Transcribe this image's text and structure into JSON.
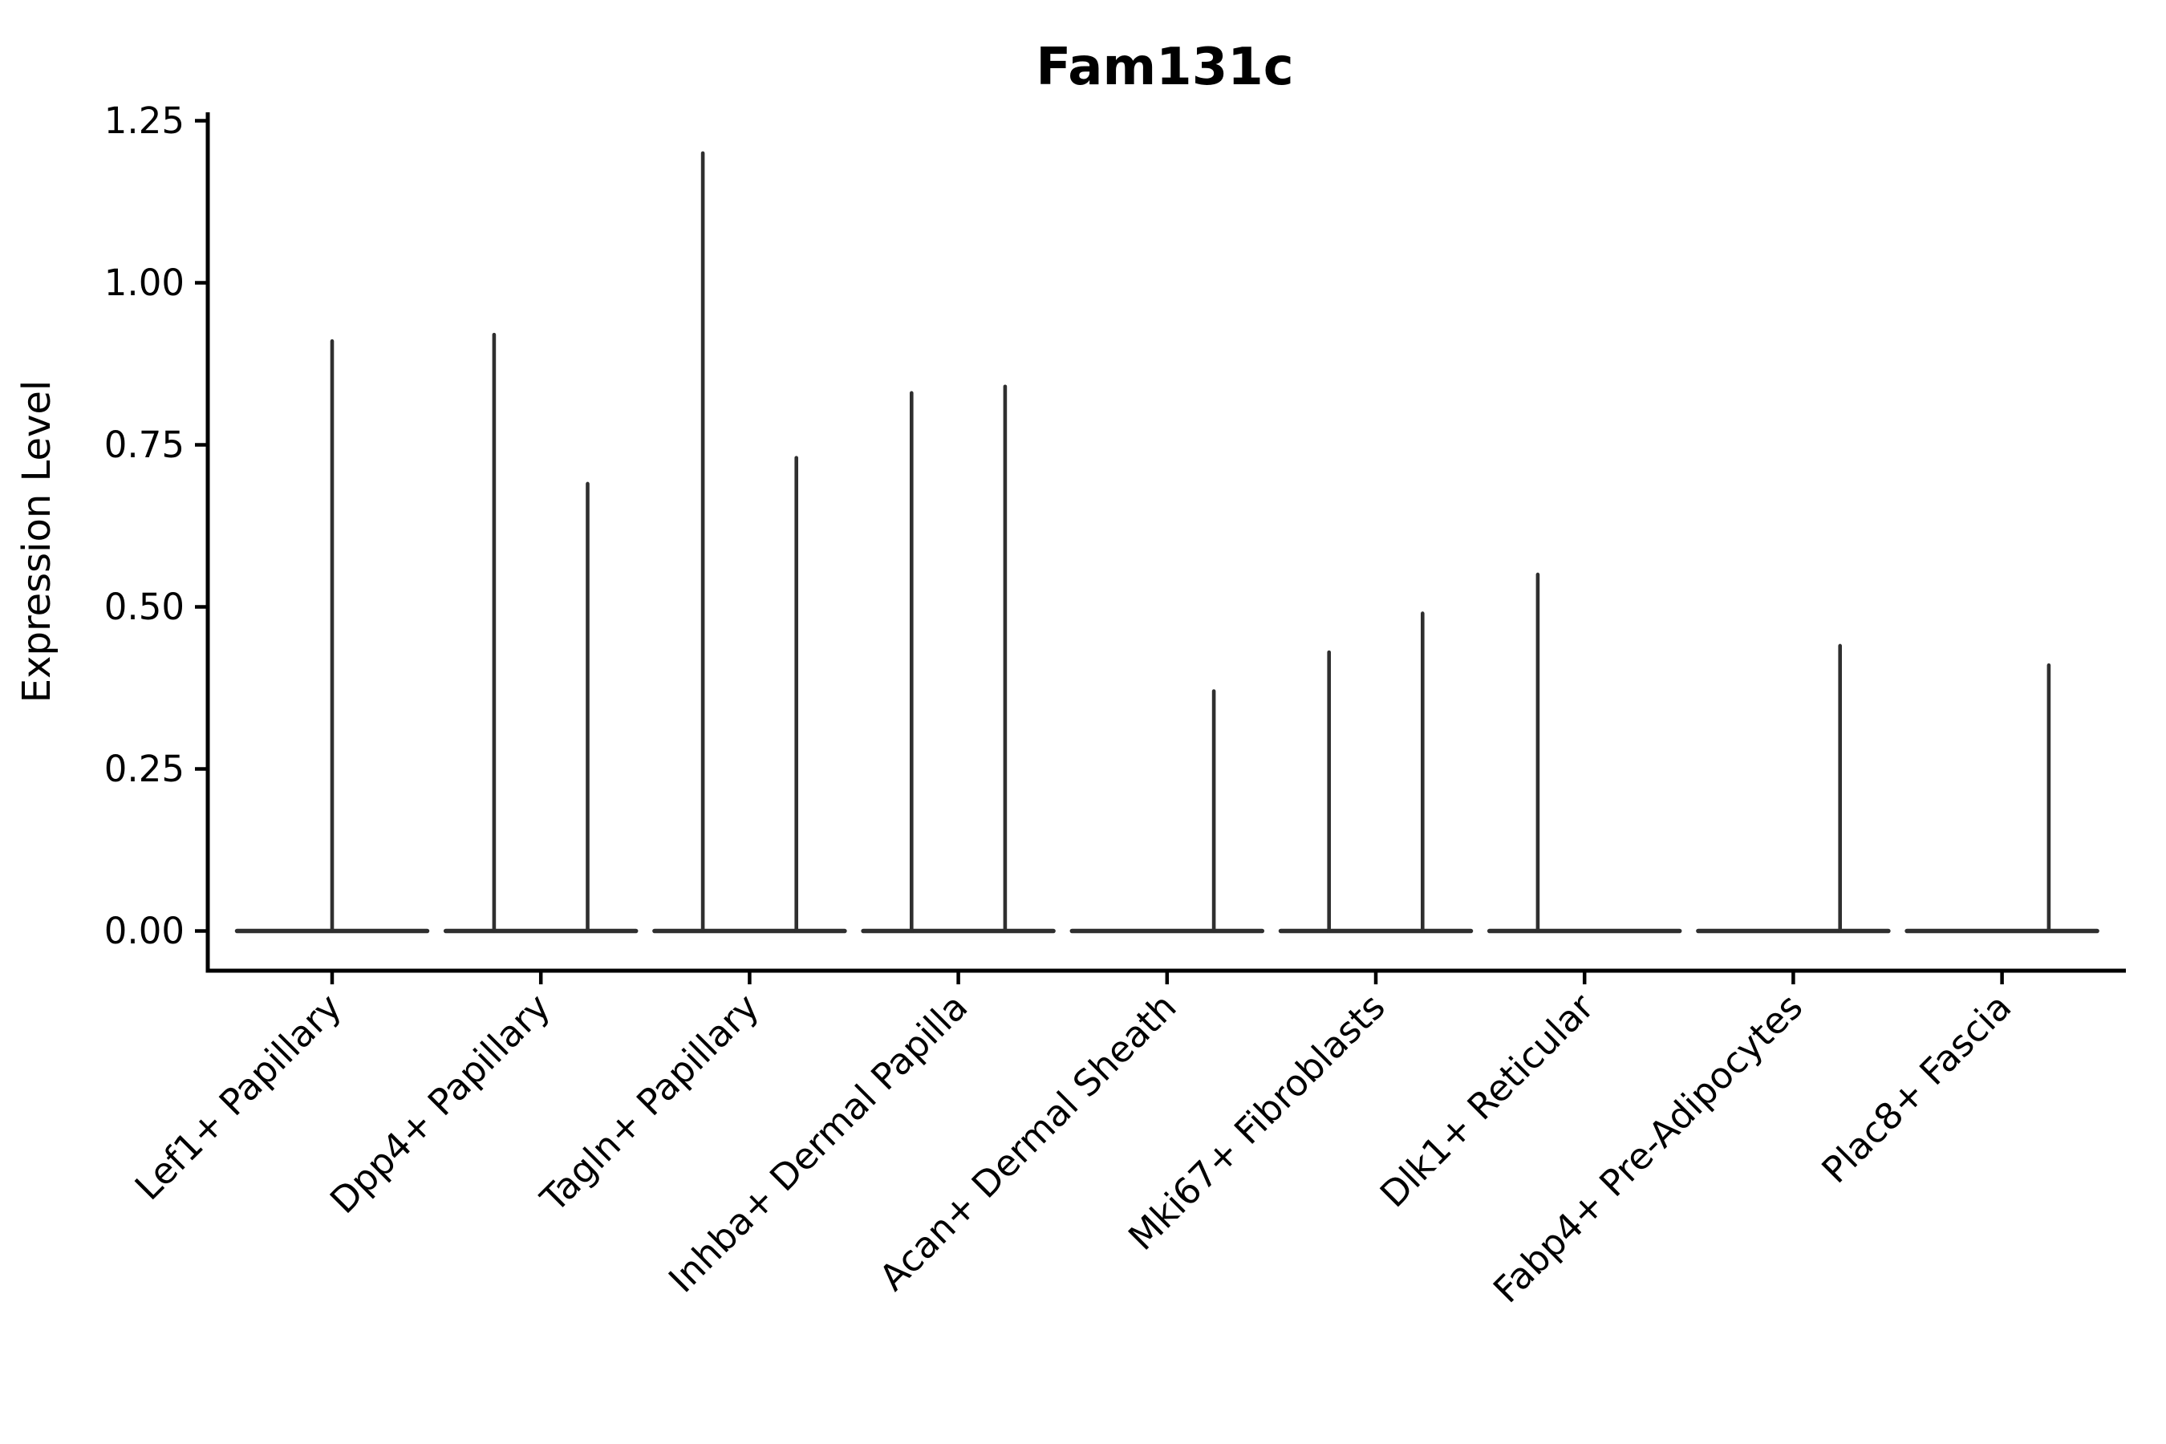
{
  "title": "Fam131c",
  "y_axis": {
    "label": "Expression Level",
    "tick_labels": [
      "0.00",
      "0.25",
      "0.50",
      "0.75",
      "1.00",
      "1.25"
    ],
    "tick_values": [
      0,
      0.25,
      0.5,
      0.75,
      1.0,
      1.25
    ]
  },
  "chart_data": {
    "type": "violin",
    "title": "Fam131c",
    "xlabel": "",
    "ylabel": "Expression Level",
    "ylim": [
      0,
      1.25
    ],
    "yticks": [
      0,
      0.25,
      0.5,
      0.75,
      1.0,
      1.25
    ],
    "ytick_labels": [
      "0.00",
      "0.25",
      "0.50",
      "0.75",
      "1.00",
      "1.25"
    ],
    "grid": false,
    "legend": "none",
    "description": "Sparse expression violin plot: each category shows a flattened violin baseline at 0 with thin vertical density spikes reaching the maximum expression value; paired spikes sit at left/right sub-violin centers.",
    "categories": [
      "Lef1+ Papillary",
      "Dpp4+ Papillary",
      "Tagln+ Papillary",
      "Inhba+ Dermal Papilla",
      "Acan+ Dermal Sheath",
      "Mki67+ Fibroblasts",
      "Dlk1+ Reticular",
      "Fabp4+ Pre-Adipocytes",
      "Plac8+ Fascia"
    ],
    "series": [
      {
        "category": "Lef1+ Papillary",
        "baseline": 0,
        "spikes": [
          {
            "position": "center",
            "max": 0.91
          }
        ]
      },
      {
        "category": "Dpp4+ Papillary",
        "baseline": 0,
        "spikes": [
          {
            "position": "left",
            "max": 0.92
          },
          {
            "position": "right",
            "max": 0.69
          }
        ]
      },
      {
        "category": "Tagln+ Papillary",
        "baseline": 0,
        "spikes": [
          {
            "position": "left",
            "max": 1.2
          },
          {
            "position": "right",
            "max": 0.73
          }
        ]
      },
      {
        "category": "Inhba+ Dermal Papilla",
        "baseline": 0,
        "spikes": [
          {
            "position": "left",
            "max": 0.83
          },
          {
            "position": "right",
            "max": 0.84
          }
        ]
      },
      {
        "category": "Acan+ Dermal Sheath",
        "baseline": 0,
        "spikes": [
          {
            "position": "right",
            "max": 0.37
          }
        ]
      },
      {
        "category": "Mki67+ Fibroblasts",
        "baseline": 0,
        "spikes": [
          {
            "position": "left",
            "max": 0.43
          },
          {
            "position": "right",
            "max": 0.49
          }
        ]
      },
      {
        "category": "Dlk1+ Reticular",
        "baseline": 0,
        "spikes": [
          {
            "position": "left",
            "max": 0.55
          }
        ]
      },
      {
        "category": "Fabp4+ Pre-Adipocytes",
        "baseline": 0,
        "spikes": [
          {
            "position": "right",
            "max": 0.44
          }
        ]
      },
      {
        "category": "Plac8+ Fascia",
        "baseline": 0,
        "spikes": [
          {
            "position": "right",
            "max": 0.41
          }
        ]
      }
    ],
    "colors": {
      "violin_line": "#2f2f2f",
      "axis": "#000000",
      "text": "#000000",
      "background": "#ffffff"
    }
  }
}
